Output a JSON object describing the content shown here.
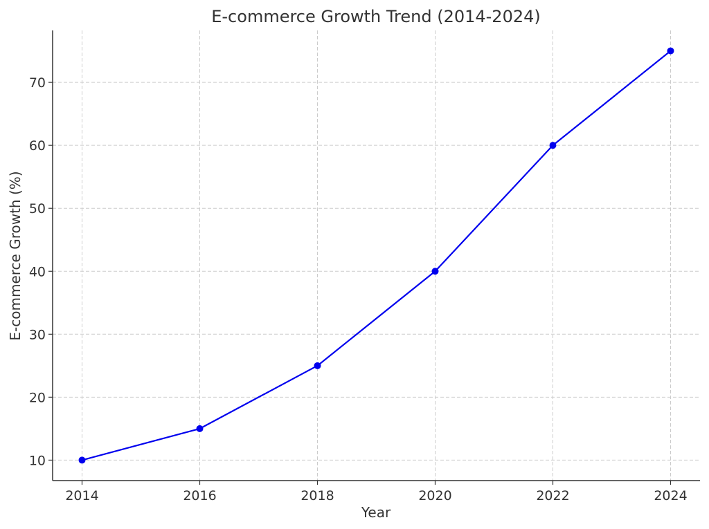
{
  "chart_data": {
    "type": "line",
    "title": "E-commerce Growth Trend (2014-2024)",
    "xlabel": "Year",
    "ylabel": "E-commerce Growth (%)",
    "x": [
      2014,
      2016,
      2018,
      2020,
      2022,
      2024
    ],
    "series": [
      {
        "values": [
          10,
          15,
          25,
          40,
          60,
          75
        ],
        "color": "#0000ee",
        "marker": "circle"
      }
    ],
    "xticks": [
      "2014",
      "2016",
      "2018",
      "2020",
      "2022",
      "2024"
    ],
    "yticks": [
      "10",
      "20",
      "30",
      "40",
      "50",
      "60",
      "70"
    ],
    "xlim": [
      2013.5,
      2024.5
    ],
    "ylim": [
      6.75,
      78.25
    ],
    "grid": true,
    "legend": "none"
  }
}
